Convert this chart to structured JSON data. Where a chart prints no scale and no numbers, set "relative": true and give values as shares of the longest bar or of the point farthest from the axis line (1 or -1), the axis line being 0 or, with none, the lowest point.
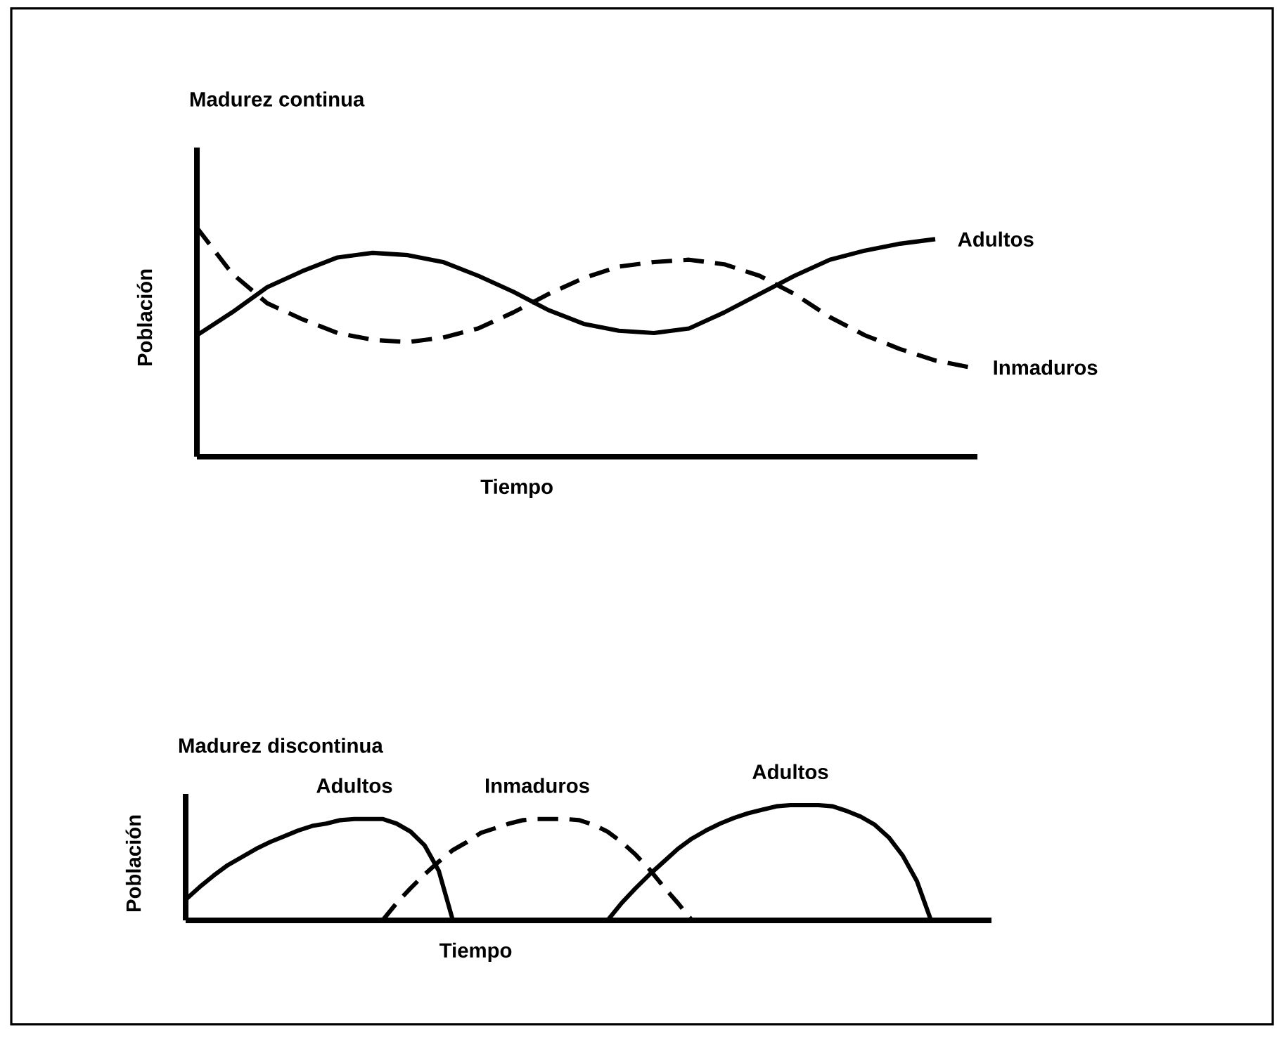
{
  "chart_data": [
    {
      "type": "line",
      "title": "Madurez continua",
      "xlabel": "Tiempo",
      "ylabel": "Población",
      "relative": true,
      "tick_labels": false,
      "categories": [
        null,
        null,
        null,
        null,
        null,
        null,
        null,
        null,
        null,
        null,
        null,
        null,
        null,
        null,
        null,
        null,
        null,
        null,
        null,
        null,
        null,
        null,
        null
      ],
      "series": [
        {
          "name": "Adultos",
          "color": "#000000",
          "line_style": "solid",
          "values": [
            0.53,
            0.63,
            0.74,
            0.81,
            0.87,
            0.89,
            0.88,
            0.85,
            0.79,
            0.72,
            0.64,
            0.58,
            0.55,
            0.54,
            0.56,
            0.63,
            0.71,
            0.79,
            0.86,
            0.9,
            0.93,
            0.95,
            null
          ]
        },
        {
          "name": "Inmaduros",
          "color": "#000000",
          "line_style": "dashed",
          "values": [
            1,
            0.8,
            0.67,
            0.6,
            0.54,
            0.51,
            0.5,
            0.52,
            0.56,
            0.63,
            0.71,
            0.78,
            0.83,
            0.85,
            0.86,
            0.84,
            0.79,
            0.71,
            0.61,
            0.53,
            0.47,
            0.42,
            0.39
          ]
        }
      ]
    },
    {
      "type": "line",
      "title": "Madurez discontinua",
      "xlabel": "Tiempo",
      "ylabel": "Población",
      "relative": true,
      "tick_labels": false,
      "categories": [
        null,
        null,
        null,
        null,
        null,
        null,
        null,
        null,
        null,
        null,
        null,
        null,
        null,
        null,
        null,
        null,
        null,
        null,
        null,
        null,
        null,
        null,
        null,
        null,
        null,
        null,
        null,
        null,
        null,
        null,
        null,
        null,
        null,
        null,
        null,
        null,
        null,
        null,
        null,
        null,
        null,
        null,
        null,
        null,
        null,
        null,
        null,
        null,
        null,
        null,
        null,
        null,
        null,
        null,
        null
      ],
      "series": [
        {
          "name": "Adultos",
          "color": "#000000",
          "line_style": "solid",
          "values": [
            0.18,
            0.29,
            0.39,
            0.48,
            0.55,
            0.62,
            0.68,
            0.73,
            0.78,
            0.82,
            0.84,
            0.87,
            0.88,
            0.88,
            0.88,
            0.84,
            0.77,
            0.65,
            0.43,
            0,
            null,
            null,
            null,
            null,
            null,
            null,
            null,
            null,
            null,
            null,
            null,
            null,
            null,
            null,
            null,
            null,
            null,
            null,
            null,
            null,
            null,
            null,
            null,
            null,
            null,
            null,
            null,
            null,
            null,
            null,
            null,
            null,
            null,
            null,
            null
          ]
        },
        {
          "name": "Inmaduros",
          "color": "#000000",
          "line_style": "dashed",
          "values": [
            null,
            null,
            null,
            null,
            null,
            null,
            null,
            null,
            null,
            null,
            null,
            null,
            null,
            null,
            0,
            0.15,
            0.28,
            0.4,
            0.51,
            0.61,
            0.68,
            0.76,
            0.8,
            0.84,
            0.87,
            0.88,
            0.88,
            0.88,
            0.87,
            0.83,
            0.77,
            0.68,
            0.57,
            0.44,
            0.29,
            0.15,
            0,
            null,
            null,
            null,
            null,
            null,
            null,
            null,
            null,
            null,
            null,
            null,
            null,
            null,
            null,
            null,
            null,
            null,
            null
          ]
        },
        {
          "name": "Adultos",
          "color": "#000000",
          "line_style": "solid",
          "values": [
            null,
            null,
            null,
            null,
            null,
            null,
            null,
            null,
            null,
            null,
            null,
            null,
            null,
            null,
            null,
            null,
            null,
            null,
            null,
            null,
            null,
            null,
            null,
            null,
            null,
            null,
            null,
            null,
            null,
            null,
            0,
            0.15,
            0.28,
            0.4,
            0.51,
            0.62,
            0.71,
            0.78,
            0.84,
            0.89,
            0.93,
            0.96,
            0.99,
            1,
            1,
            1,
            0.99,
            0.95,
            0.9,
            0.83,
            0.72,
            0.56,
            0.34,
            0,
            null
          ]
        }
      ]
    }
  ]
}
